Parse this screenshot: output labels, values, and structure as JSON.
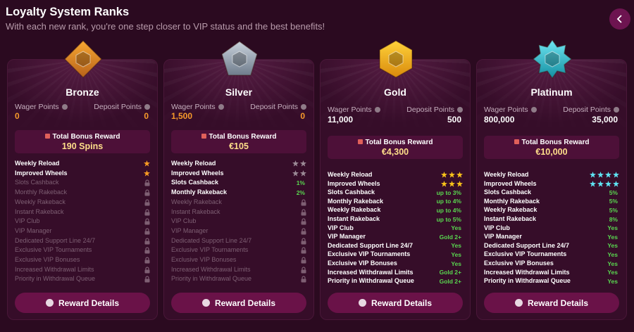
{
  "header": {
    "title": "Loyalty System Ranks",
    "subtitle": "With each new rank, you're one step closer to VIP status and the best benefits!"
  },
  "feature_names": [
    "Weekly Reload",
    "Improved Wheels",
    "Slots Cashback",
    "Monthly Rakeback",
    "Weekly Rakeback",
    "Instant Rakeback",
    "VIP Club",
    "VIP Manager",
    "Dedicated Support Line 24/7",
    "Exclusive VIP Tournaments",
    "Exclusive VIP Bonuses",
    "Increased Withdrawal Limits",
    "Priority in Withdrawal Queue"
  ],
  "ranks": [
    {
      "name": "Bronze",
      "wager_label": "Wager Points",
      "deposit_label": "Deposit Points",
      "wager": "0",
      "deposit": "0",
      "reward_label": "Total Bonus Reward",
      "reward": "190 Spins",
      "star_color": "#f59a23",
      "button": "Reward Details",
      "benefits": [
        {
          "stars": 1
        },
        {
          "stars": 1
        },
        {
          "locked": true
        },
        {
          "locked": true
        },
        {
          "locked": true
        },
        {
          "locked": true
        },
        {
          "locked": true
        },
        {
          "locked": true
        },
        {
          "locked": true
        },
        {
          "locked": true
        },
        {
          "locked": true
        },
        {
          "locked": true
        },
        {
          "locked": true
        }
      ]
    },
    {
      "name": "Silver",
      "wager_label": "Wager Points",
      "deposit_label": "Deposit Points",
      "wager": "1,500",
      "deposit": "0",
      "reward_label": "Total Bonus Reward",
      "reward": "€105",
      "star_color": "#9c8b97",
      "button": "Reward Details",
      "benefits": [
        {
          "stars": 2
        },
        {
          "stars": 2
        },
        {
          "value": "1%"
        },
        {
          "value": "2%"
        },
        {
          "locked": true
        },
        {
          "locked": true
        },
        {
          "locked": true
        },
        {
          "locked": true
        },
        {
          "locked": true
        },
        {
          "locked": true
        },
        {
          "locked": true
        },
        {
          "locked": true
        },
        {
          "locked": true
        }
      ]
    },
    {
      "name": "Gold",
      "wager_label": "Wager Points",
      "deposit_label": "Deposit Points",
      "wager": "11,000",
      "deposit": "500",
      "reward_label": "Total Bonus Reward",
      "reward": "€4,300",
      "star_color": "#f7c21a",
      "button": "Reward Details",
      "benefits": [
        {
          "stars": 3
        },
        {
          "stars": 3
        },
        {
          "value": "up to 3%"
        },
        {
          "value": "up to 4%"
        },
        {
          "value": "up to 4%"
        },
        {
          "value": "up to 5%"
        },
        {
          "value": "Yes"
        },
        {
          "value": "Gold 2+"
        },
        {
          "value": "Yes"
        },
        {
          "value": "Yes"
        },
        {
          "value": "Yes"
        },
        {
          "value": "Gold 2+"
        },
        {
          "value": "Gold 2+"
        }
      ]
    },
    {
      "name": "Platinum",
      "wager_label": "Wager Points",
      "deposit_label": "Deposit Points",
      "wager": "800,000",
      "deposit": "35,000",
      "reward_label": "Total Bonus Reward",
      "reward": "€10,000",
      "star_color": "#5fe3f2",
      "button": "Reward Details",
      "benefits": [
        {
          "stars": 4
        },
        {
          "stars": 4
        },
        {
          "value": "5%"
        },
        {
          "value": "5%"
        },
        {
          "value": "5%"
        },
        {
          "value": "8%"
        },
        {
          "value": "Yes"
        },
        {
          "value": "Yes"
        },
        {
          "value": "Yes"
        },
        {
          "value": "Yes"
        },
        {
          "value": "Yes"
        },
        {
          "value": "Yes"
        },
        {
          "value": "Yes"
        }
      ]
    }
  ]
}
